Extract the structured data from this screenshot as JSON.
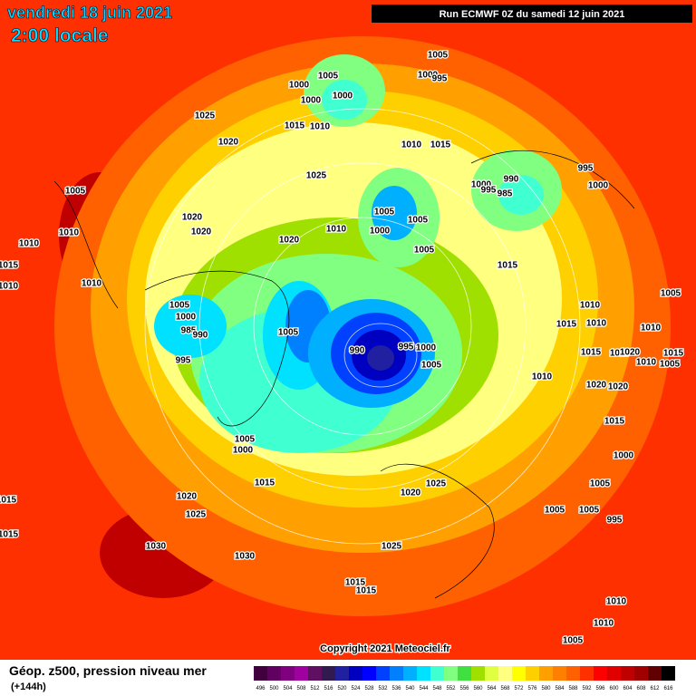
{
  "header": {
    "date": "vendredi 18 juin 2021",
    "time": "2:00 locale",
    "run": "Run ECMWF 0Z du samedi 12 juin 2021"
  },
  "footer": {
    "title": "Géop. z500, pression niveau mer",
    "lead": "(+144h)",
    "copyright": "Copyright 2021 Meteociel.fr"
  },
  "legend": {
    "ticks": [
      496,
      500,
      504,
      508,
      512,
      516,
      520,
      524,
      528,
      532,
      536,
      540,
      544,
      548,
      552,
      556,
      560,
      564,
      568,
      572,
      576,
      580,
      584,
      588,
      592,
      596,
      600,
      604,
      608,
      612,
      616
    ],
    "colors": [
      "#400040",
      "#600060",
      "#800080",
      "#a000a0",
      "#601060",
      "#301a50",
      "#2020a0",
      "#0000c0",
      "#0000ff",
      "#0040ff",
      "#0080ff",
      "#00b0ff",
      "#00e0ff",
      "#40ffd0",
      "#80ff80",
      "#40e040",
      "#a0e000",
      "#e0ff40",
      "#ffff80",
      "#ffff00",
      "#ffd000",
      "#ffa000",
      "#ff8000",
      "#ff6000",
      "#ff3000",
      "#ff0000",
      "#e00000",
      "#c00000",
      "#a00000",
      "#600000",
      "#000000"
    ]
  },
  "isobar_labels": [
    "1005",
    "1000",
    "1000",
    "1000",
    "1005",
    "1000",
    "995",
    "1025",
    "1015",
    "1010",
    "1020",
    "1010",
    "1015",
    "995",
    "990",
    "1000",
    "995",
    "985",
    "1000",
    "1025",
    "1005",
    "1020",
    "1005",
    "1005",
    "1020",
    "1010",
    "1000",
    "1010",
    "1020",
    "1005",
    "1010",
    "1015",
    "1015",
    "1010",
    "1010",
    "1005",
    "1005",
    "1010",
    "1000",
    "1015",
    "1010",
    "1005",
    "985",
    "990",
    "990",
    "995",
    "1000",
    "1010",
    "1015",
    "1010",
    "1020",
    "1015",
    "995",
    "1005",
    "1010",
    "1005",
    "1010",
    "1020",
    "1020",
    "1015",
    "1005",
    "1000",
    "1000",
    "1015",
    "1005",
    "1020",
    "1025",
    "1015",
    "1020",
    "1005",
    "1005",
    "995",
    "1025",
    "1015",
    "1030",
    "1030",
    "1025",
    "1015",
    "1015",
    "1010",
    "1010",
    "1005"
  ]
}
